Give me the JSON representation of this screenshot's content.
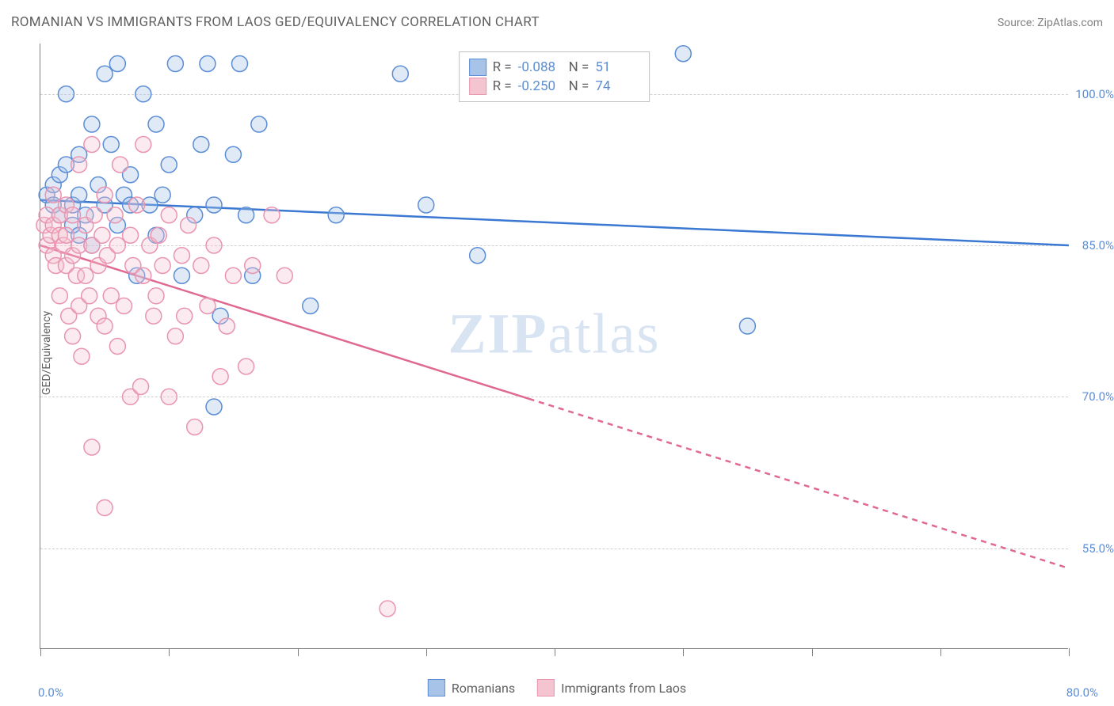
{
  "title": "ROMANIAN VS IMMIGRANTS FROM LAOS GED/EQUIVALENCY CORRELATION CHART",
  "source": "Source: ZipAtlas.com",
  "yaxis_title": "GED/Equivalency",
  "watermark_bold": "ZIP",
  "watermark_rest": "atlas",
  "chart": {
    "type": "scatter",
    "background_color": "#ffffff",
    "grid_color": "#d0d0d0",
    "axis_color": "#808080",
    "tick_label_color": "#5b8dd6",
    "xlim": [
      0,
      80
    ],
    "ylim": [
      45,
      105
    ],
    "x_ticks": [
      0,
      10,
      20,
      30,
      40,
      50,
      60,
      70,
      80
    ],
    "x_min_label": "0.0%",
    "x_max_label": "80.0%",
    "y_gridlines": [
      {
        "value": 100,
        "label": "100.0%"
      },
      {
        "value": 85,
        "label": "85.0%"
      },
      {
        "value": 70,
        "label": "70.0%"
      },
      {
        "value": 55,
        "label": "55.0%"
      }
    ],
    "marker_radius": 10,
    "marker_fill_opacity": 0.35,
    "marker_stroke_width": 1.5,
    "trend_line_width": 2.5,
    "series": [
      {
        "name": "Romanians",
        "color_fill": "#a7c4e8",
        "color_stroke": "#5b8dd6",
        "line_color": "#3b78d1",
        "R": "-0.088",
        "N": "51",
        "trend": {
          "x1": 0,
          "y1": 89.5,
          "x2": 80,
          "y2": 85.0,
          "solid_until_x": 80
        },
        "points": [
          [
            0.5,
            90
          ],
          [
            1,
            91
          ],
          [
            1,
            89
          ],
          [
            1.5,
            88
          ],
          [
            1.5,
            92
          ],
          [
            2,
            100
          ],
          [
            2,
            93
          ],
          [
            2.5,
            87
          ],
          [
            2.5,
            89
          ],
          [
            3,
            94
          ],
          [
            3,
            90
          ],
          [
            3,
            86
          ],
          [
            3.5,
            88
          ],
          [
            4,
            97
          ],
          [
            4,
            85
          ],
          [
            4.5,
            91
          ],
          [
            5,
            102
          ],
          [
            5,
            89
          ],
          [
            5.5,
            95
          ],
          [
            6,
            87
          ],
          [
            6,
            103
          ],
          [
            6.5,
            90
          ],
          [
            7,
            89
          ],
          [
            7,
            92
          ],
          [
            7.5,
            82
          ],
          [
            8,
            100
          ],
          [
            8.5,
            89
          ],
          [
            9,
            97
          ],
          [
            9,
            86
          ],
          [
            9.5,
            90
          ],
          [
            10,
            93
          ],
          [
            10.5,
            103
          ],
          [
            11,
            82
          ],
          [
            12,
            88
          ],
          [
            12.5,
            95
          ],
          [
            13,
            103
          ],
          [
            13.5,
            89
          ],
          [
            13.5,
            69
          ],
          [
            14,
            78
          ],
          [
            15,
            94
          ],
          [
            15.5,
            103
          ],
          [
            16,
            88
          ],
          [
            16.5,
            82
          ],
          [
            17,
            97
          ],
          [
            21,
            79
          ],
          [
            23,
            88
          ],
          [
            28,
            102
          ],
          [
            30,
            89
          ],
          [
            34,
            84
          ],
          [
            50,
            104
          ],
          [
            55,
            77
          ]
        ]
      },
      {
        "name": "Immigrants from Laos",
        "color_fill": "#f4c4d1",
        "color_stroke": "#e995b1",
        "line_color": "#e06a8f",
        "R": "-0.250",
        "N": "74",
        "trend": {
          "x1": 0,
          "y1": 85.0,
          "x2": 80,
          "y2": 53.0,
          "solid_until_x": 38
        },
        "points": [
          [
            0.3,
            87
          ],
          [
            0.5,
            85
          ],
          [
            0.5,
            88
          ],
          [
            0.8,
            86
          ],
          [
            1,
            90
          ],
          [
            1,
            84
          ],
          [
            1,
            87
          ],
          [
            1.2,
            83
          ],
          [
            1.5,
            86
          ],
          [
            1.5,
            88
          ],
          [
            1.5,
            80
          ],
          [
            1.8,
            85
          ],
          [
            2,
            86
          ],
          [
            2,
            89
          ],
          [
            2,
            83
          ],
          [
            2.2,
            78
          ],
          [
            2.5,
            84
          ],
          [
            2.5,
            88
          ],
          [
            2.5,
            76
          ],
          [
            2.8,
            82
          ],
          [
            3,
            85
          ],
          [
            3,
            79
          ],
          [
            3,
            93
          ],
          [
            3.2,
            74
          ],
          [
            3.5,
            87
          ],
          [
            3.5,
            82
          ],
          [
            3.8,
            80
          ],
          [
            4,
            95
          ],
          [
            4,
            85
          ],
          [
            4,
            65
          ],
          [
            4.2,
            88
          ],
          [
            4.5,
            78
          ],
          [
            4.5,
            83
          ],
          [
            4.8,
            86
          ],
          [
            5,
            77
          ],
          [
            5,
            90
          ],
          [
            5,
            59
          ],
          [
            5.2,
            84
          ],
          [
            5.5,
            80
          ],
          [
            5.8,
            88
          ],
          [
            6,
            75
          ],
          [
            6,
            85
          ],
          [
            6.2,
            93
          ],
          [
            6.5,
            79
          ],
          [
            7,
            86
          ],
          [
            7,
            70
          ],
          [
            7.2,
            83
          ],
          [
            7.5,
            89
          ],
          [
            7.8,
            71
          ],
          [
            8,
            95
          ],
          [
            8,
            82
          ],
          [
            8.5,
            85
          ],
          [
            8.8,
            78
          ],
          [
            9,
            80
          ],
          [
            9.2,
            86
          ],
          [
            9.5,
            83
          ],
          [
            10,
            88
          ],
          [
            10,
            70
          ],
          [
            10.5,
            76
          ],
          [
            11,
            84
          ],
          [
            11.2,
            78
          ],
          [
            11.5,
            87
          ],
          [
            12,
            67
          ],
          [
            12.5,
            83
          ],
          [
            13,
            79
          ],
          [
            13.5,
            85
          ],
          [
            14,
            72
          ],
          [
            14.5,
            77
          ],
          [
            15,
            82
          ],
          [
            16,
            73
          ],
          [
            16.5,
            83
          ],
          [
            18,
            88
          ],
          [
            19,
            82
          ],
          [
            27,
            49
          ]
        ]
      }
    ]
  },
  "legend_bottom": [
    "Romanians",
    "Immigrants from Laos"
  ]
}
